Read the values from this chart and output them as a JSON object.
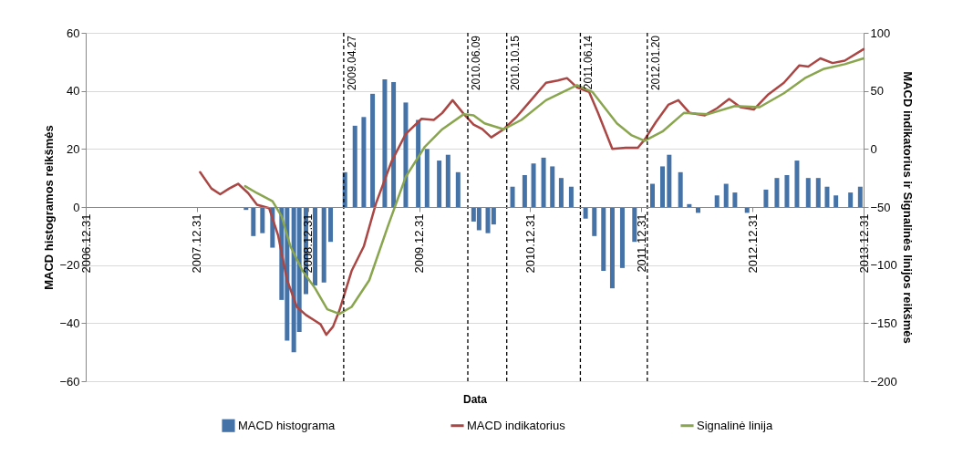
{
  "chart_data": {
    "type": "bar",
    "xlabel": "Data",
    "ylabel": "MACD histogramos reikšmės",
    "y2label": "MACD indikatorius ir Signalinės linijos reikšmės",
    "xlim": [
      "2006-12-31",
      "2013-12-31"
    ],
    "xticks": [
      {
        "value": "2006-12-31",
        "label": "2006.12.31"
      },
      {
        "value": "2007-12-31",
        "label": "2007.12.31"
      },
      {
        "value": "2008-12-31",
        "label": "2008.12.31"
      },
      {
        "value": "2009-12-31",
        "label": "2009.12.31"
      },
      {
        "value": "2010-12-31",
        "label": "2010.12.31"
      },
      {
        "value": "2011-12-31",
        "label": "2011.12.31"
      },
      {
        "value": "2012-12-31",
        "label": "2012.12.31"
      },
      {
        "value": "2013-12-31",
        "label": "2013.12.31"
      }
    ],
    "ylim": [
      -60,
      60
    ],
    "yticks": [
      -60,
      -40,
      -20,
      0,
      20,
      40,
      60
    ],
    "y2lim": [
      -200,
      100
    ],
    "y2ticks": [
      -200,
      -150,
      -100,
      -50,
      0,
      50,
      100
    ],
    "grid": "y",
    "legend": "bottom",
    "series": [
      {
        "name": "MACD histograma",
        "color": "#4572a7",
        "x": [
          "2008-06-10",
          "2008-07-04",
          "2008-08-03",
          "2008-09-05",
          "2008-10-05",
          "2008-10-23",
          "2008-11-14",
          "2008-12-02",
          "2008-12-24",
          "2009-01-23",
          "2009-02-21",
          "2009-03-15",
          "2009-05-01",
          "2009-06-03",
          "2009-07-02",
          "2009-07-31",
          "2009-09-09",
          "2009-10-08",
          "2009-11-17",
          "2009-12-28",
          "2010-01-26",
          "2010-03-07",
          "2010-04-05",
          "2010-05-08",
          "2010-06-28",
          "2010-07-16",
          "2010-08-14",
          "2010-09-02",
          "2010-11-03",
          "2010-12-13",
          "2011-01-11",
          "2011-02-13",
          "2011-03-14",
          "2011-04-12",
          "2011-05-15",
          "2011-07-01",
          "2011-07-30",
          "2011-08-29",
          "2011-09-27",
          "2011-10-30",
          "2011-12-09",
          "2012-02-06",
          "2012-03-10",
          "2012-04-01",
          "2012-05-08",
          "2012-06-06",
          "2012-07-05",
          "2012-09-05",
          "2012-10-05",
          "2012-11-03",
          "2012-12-13",
          "2013-02-13",
          "2013-03-21",
          "2013-04-23",
          "2013-05-26",
          "2013-07-02",
          "2013-08-04",
          "2013-09-02",
          "2013-10-01",
          "2013-11-18",
          "2013-12-20"
        ],
        "values": [
          -1,
          -10,
          -9,
          -14,
          -32,
          -46,
          -50,
          -43,
          -30,
          -27,
          -26,
          -12,
          12,
          28,
          31,
          39,
          44,
          43,
          36,
          30,
          20,
          16,
          18,
          12,
          -5,
          -8,
          -9,
          -6,
          7,
          11,
          15,
          17,
          14,
          10,
          7,
          -4,
          -10,
          -22,
          -28,
          -21,
          -12,
          8,
          14,
          18,
          12,
          1,
          -2,
          4,
          8,
          5,
          -2,
          6,
          10,
          11,
          16,
          10,
          10,
          7,
          4,
          5,
          7
        ]
      },
      {
        "name": "MACD indikatorius",
        "type": "line",
        "axis": "y2",
        "color": "#aa4643",
        "x": [
          "2008-01-11",
          "2008-02-17",
          "2008-03-17",
          "2008-04-16",
          "2008-05-15",
          "2008-06-17",
          "2008-07-16",
          "2008-08-25",
          "2008-09-23",
          "2008-10-23",
          "2008-11-24",
          "2008-12-24",
          "2009-01-23",
          "2009-02-10",
          "2009-03-01",
          "2009-03-23",
          "2009-04-13",
          "2009-05-23",
          "2009-07-02",
          "2009-08-11",
          "2009-10-01",
          "2009-11-17",
          "2010-01-08",
          "2010-02-17",
          "2010-03-17",
          "2010-04-20",
          "2010-05-27",
          "2010-06-28",
          "2010-07-27",
          "2010-08-25",
          "2010-10-05",
          "2010-11-14",
          "2010-12-24",
          "2011-02-21",
          "2011-04-01",
          "2011-05-01",
          "2011-06-03",
          "2011-07-13",
          "2011-08-11",
          "2011-09-27",
          "2011-11-10",
          "2011-12-20",
          "2012-01-11",
          "2012-02-17",
          "2012-03-29",
          "2012-05-01",
          "2012-06-07",
          "2012-07-27",
          "2012-09-05",
          "2012-10-15",
          "2012-11-21",
          "2013-01-04",
          "2013-02-21",
          "2013-04-13",
          "2013-06-03",
          "2013-07-02",
          "2013-08-11",
          "2013-09-20",
          "2013-10-30",
          "2013-12-31"
        ],
        "values": [
          -20,
          -34,
          -39,
          -34,
          -30,
          -38,
          -48,
          -51,
          -74,
          -113,
          -136,
          -143,
          -148,
          -151,
          -160,
          -153,
          -139,
          -105,
          -84,
          -47,
          -11,
          13,
          26,
          25,
          31,
          42,
          30,
          21,
          17,
          10,
          17,
          27,
          39,
          57,
          59,
          61,
          53,
          49,
          31,
          0,
          1,
          1,
          8,
          23,
          38,
          42,
          31,
          29,
          35,
          43,
          36,
          34,
          47,
          57,
          72,
          71,
          78,
          74,
          76,
          86
        ]
      },
      {
        "name": "Signalinė linija",
        "type": "line",
        "axis": "y2",
        "color": "#89a54e",
        "x": [
          "2008-06-07",
          "2008-07-16",
          "2008-09-05",
          "2008-10-05",
          "2008-11-03",
          "2008-12-13",
          "2009-01-23",
          "2009-03-04",
          "2009-04-13",
          "2009-05-23",
          "2009-07-20",
          "2009-09-20",
          "2009-11-17",
          "2010-01-19",
          "2010-03-17",
          "2010-05-27",
          "2010-06-28",
          "2010-08-03",
          "2010-10-05",
          "2010-12-02",
          "2011-02-21",
          "2011-06-03",
          "2011-07-24",
          "2011-10-12",
          "2011-11-28",
          "2012-01-11",
          "2012-03-10",
          "2012-05-19",
          "2012-08-07",
          "2012-11-03",
          "2013-01-23",
          "2013-04-13",
          "2013-06-21",
          "2013-08-23",
          "2013-10-30",
          "2013-12-31"
        ],
        "values": [
          -32,
          -38,
          -45,
          -58,
          -84,
          -105,
          -120,
          -138,
          -142,
          -136,
          -113,
          -66,
          -24,
          2,
          17,
          30,
          29,
          22,
          17,
          25,
          42,
          55,
          49,
          22,
          12,
          7,
          15,
          31,
          30,
          37,
          36,
          48,
          61,
          69,
          73,
          78
        ]
      }
    ],
    "ref_lines": [
      {
        "axis": "x",
        "value": "2009-04-27",
        "label": "2009.04.27",
        "color": "#000000",
        "line_style": "dashed"
      },
      {
        "axis": "x",
        "value": "2010-06-09",
        "label": "2010.06.09",
        "color": "#000000",
        "line_style": "dashed"
      },
      {
        "axis": "x",
        "value": "2010-10-15",
        "label": "2010.10.15",
        "color": "#000000",
        "line_style": "dashed"
      },
      {
        "axis": "x",
        "value": "2011-06-14",
        "label": "2011.06.14",
        "color": "#000000",
        "line_style": "dashed"
      },
      {
        "axis": "x",
        "value": "2012-01-20",
        "label": "2012.01.20",
        "color": "#000000",
        "line_style": "dashed"
      }
    ]
  }
}
